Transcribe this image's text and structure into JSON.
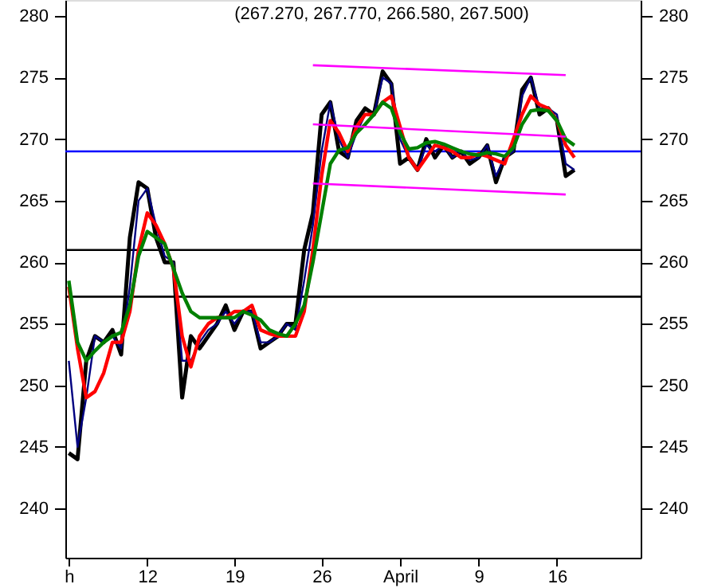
{
  "chart_data": {
    "type": "line",
    "title": "(267.270, 267.770, 266.580, 267.500)",
    "categories": [
      "h",
      null,
      null,
      null,
      null,
      null,
      null,
      null,
      null,
      "12",
      null,
      null,
      null,
      null,
      null,
      null,
      null,
      null,
      null,
      "19",
      null,
      null,
      null,
      null,
      null,
      null,
      null,
      null,
      null,
      "26",
      null,
      null,
      null,
      null,
      null,
      null,
      null,
      null,
      "April",
      null,
      null,
      null,
      null,
      null,
      null,
      null,
      null,
      "9",
      null,
      null,
      null,
      null,
      null,
      null,
      null,
      null,
      "16",
      null,
      null,
      null,
      null,
      null,
      null,
      null,
      null,
      null
    ],
    "ylim": [
      236,
      281.3
    ],
    "yticks": [
      240,
      245,
      250,
      255,
      260,
      265,
      270,
      275,
      280
    ],
    "y2lim": [
      236,
      281.3
    ],
    "y2ticks": [
      240,
      245,
      250,
      255,
      260,
      265,
      270,
      275,
      280
    ],
    "grid": false,
    "marker": "none",
    "line_style": "solid",
    "series": [
      {
        "color": "#000000",
        "values": [
          244.5,
          244,
          252,
          254,
          253.5,
          254.5,
          252.5,
          262,
          266.5,
          266,
          262,
          260,
          260,
          249,
          254,
          253,
          254,
          255,
          256.5,
          254.5,
          256,
          256,
          253,
          253.5,
          254,
          255,
          255,
          261,
          264,
          272,
          273,
          269,
          268.5,
          271.5,
          272.5,
          272,
          275.5,
          274.5,
          268,
          268.5,
          267.5,
          270,
          268.5,
          269.5,
          268.5,
          269,
          268,
          268.5,
          269.5,
          266.5,
          268.5,
          269,
          274,
          275,
          272,
          272.5,
          271.5,
          267,
          267.5,
          null,
          null,
          null,
          null,
          null,
          null,
          null
        ]
      },
      {
        "color": "#000080",
        "values": [
          252,
          245,
          249,
          254,
          253.5,
          254,
          253,
          258,
          265,
          266,
          263,
          260.5,
          260,
          252,
          252,
          253.5,
          254.5,
          255,
          256,
          255,
          256,
          256,
          253.5,
          253.5,
          254,
          255,
          254.5,
          258.5,
          263,
          269,
          273,
          270,
          268.5,
          270.5,
          272,
          272,
          275,
          274.5,
          270,
          268.5,
          267.5,
          269.5,
          269,
          269.5,
          268.5,
          269,
          268.3,
          268.5,
          269.5,
          267,
          268.5,
          269,
          273.5,
          275,
          272.5,
          272.5,
          272,
          268,
          267.5,
          null,
          null,
          null,
          null,
          null,
          null,
          null
        ]
      },
      {
        "color": "#ff0000",
        "values": [
          258,
          253,
          249,
          249.5,
          251,
          253.5,
          253.5,
          256,
          261,
          264,
          263,
          261.5,
          259.5,
          254,
          251.5,
          254,
          255,
          255.5,
          255.5,
          256,
          256,
          256.5,
          254.5,
          254.2,
          254,
          254,
          254,
          256,
          261,
          267,
          271.5,
          270.5,
          269,
          271,
          272,
          272,
          273,
          273.5,
          271,
          268.5,
          267.5,
          268.5,
          269.5,
          269.3,
          269,
          268.5,
          268.5,
          268.8,
          268.6,
          268.3,
          268,
          270,
          272,
          273.5,
          272.8,
          272.5,
          271.5,
          269.5,
          268.5,
          null,
          null,
          null,
          null,
          null,
          null,
          null
        ]
      },
      {
        "color": "#008000",
        "values": [
          258.5,
          253.5,
          252,
          252.8,
          253.5,
          254,
          254.3,
          256.5,
          260.5,
          262.5,
          262,
          261.5,
          259.5,
          257.5,
          256,
          255.5,
          255.5,
          255.5,
          255.5,
          255.5,
          256,
          255.7,
          255.3,
          254.5,
          254.2,
          254,
          255,
          256.5,
          260,
          264,
          268,
          269.1,
          269.3,
          270.5,
          271.2,
          272,
          273,
          272.5,
          270.5,
          269.2,
          269.3,
          269.7,
          269.8,
          269.6,
          269.3,
          269,
          268.8,
          268.7,
          268.9,
          268.8,
          268.6,
          269.3,
          271.2,
          272.3,
          272.4,
          272.3,
          271.5,
          270,
          269.5,
          null,
          null,
          null,
          null,
          null,
          null,
          null
        ]
      },
      {
        "color": "#ff00ff",
        "values": [
          null,
          null,
          null,
          null,
          null,
          null,
          null,
          null,
          null,
          null,
          null,
          null,
          null,
          null,
          null,
          null,
          null,
          null,
          null,
          null,
          null,
          null,
          null,
          null,
          null,
          null,
          null,
          null,
          276,
          null,
          null,
          null,
          null,
          null,
          null,
          null,
          null,
          null,
          null,
          null,
          null,
          null,
          null,
          null,
          null,
          null,
          null,
          null,
          null,
          null,
          null,
          null,
          null,
          null,
          null,
          null,
          null,
          275.2,
          null,
          null,
          null,
          null,
          null,
          null,
          null,
          null
        ]
      },
      {
        "color": "#ff00ff",
        "values": [
          null,
          null,
          null,
          null,
          null,
          null,
          null,
          null,
          null,
          null,
          null,
          null,
          null,
          null,
          null,
          null,
          null,
          null,
          null,
          null,
          null,
          null,
          null,
          null,
          null,
          null,
          null,
          null,
          271.2,
          null,
          null,
          null,
          null,
          null,
          null,
          null,
          null,
          null,
          null,
          null,
          null,
          null,
          null,
          null,
          null,
          null,
          null,
          null,
          null,
          null,
          null,
          null,
          null,
          null,
          null,
          null,
          null,
          270.2,
          null,
          null,
          null,
          null,
          null,
          null,
          null,
          null
        ]
      },
      {
        "color": "#ff00ff",
        "values": [
          null,
          null,
          null,
          null,
          null,
          null,
          null,
          null,
          null,
          null,
          null,
          null,
          null,
          null,
          null,
          null,
          null,
          null,
          null,
          null,
          null,
          null,
          null,
          null,
          null,
          null,
          null,
          null,
          266.4,
          null,
          null,
          null,
          null,
          null,
          null,
          null,
          null,
          null,
          null,
          null,
          null,
          null,
          null,
          null,
          null,
          null,
          null,
          null,
          null,
          null,
          null,
          null,
          null,
          null,
          null,
          null,
          null,
          265.5,
          null,
          null,
          null,
          null,
          null,
          null,
          null,
          null
        ]
      }
    ],
    "ref_lines": [
      {
        "axis": "y",
        "value": 269,
        "color": "#0000ff"
      },
      {
        "axis": "y",
        "value": 261,
        "color": "#000000"
      },
      {
        "axis": "y",
        "value": 257.2,
        "color": "#000000"
      }
    ]
  }
}
